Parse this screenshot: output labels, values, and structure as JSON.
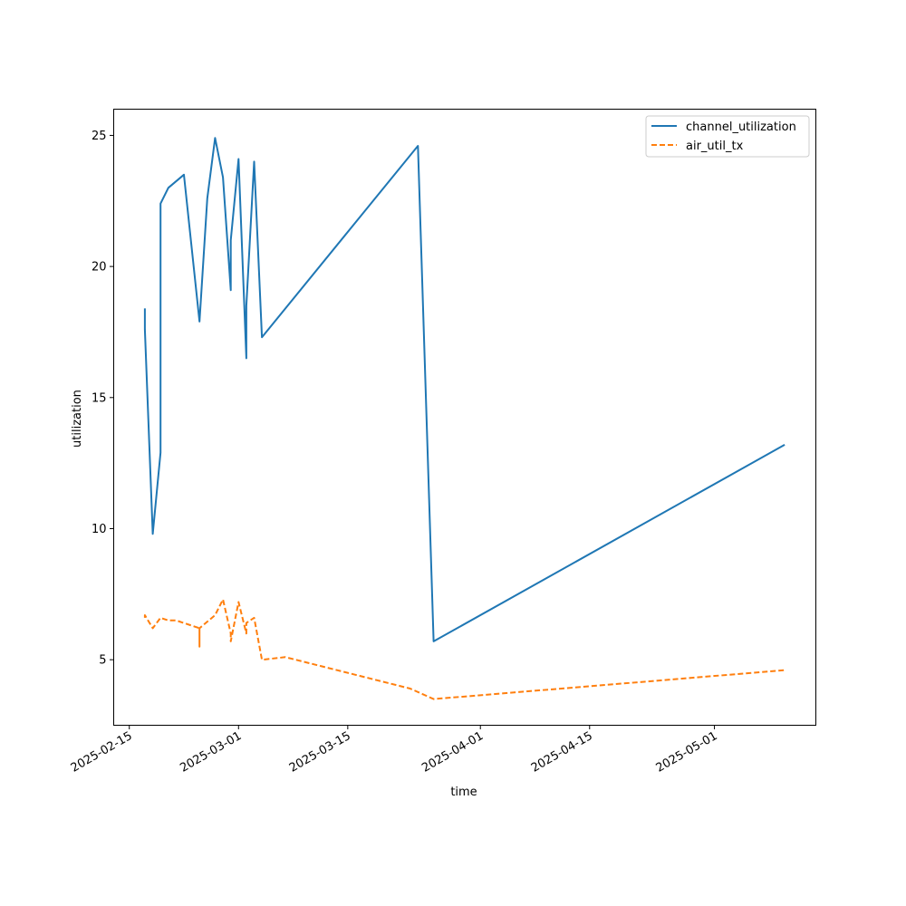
{
  "chart_data": {
    "type": "line",
    "title": "",
    "xlabel": "time",
    "ylabel": "utilization",
    "x_tick_labels": [
      "2025-02-15",
      "2025-03-01",
      "2025-03-15",
      "2025-04-01",
      "2025-04-15",
      "2025-05-01"
    ],
    "y_tick_labels": [
      "5",
      "10",
      "15",
      "20",
      "25"
    ],
    "x_range": [
      "2025-02-13",
      "2025-05-14"
    ],
    "y_range": [
      2.5,
      26.0
    ],
    "legend_position": "top-right",
    "grid": false,
    "series": [
      {
        "name": "channel_utilization",
        "color": "#1f77b4",
        "style": "solid",
        "points": [
          [
            "2025-02-17",
            18.4
          ],
          [
            "2025-02-17",
            17.6
          ],
          [
            "2025-02-18",
            9.8
          ],
          [
            "2025-02-19",
            12.9
          ],
          [
            "2025-02-19",
            16.5
          ],
          [
            "2025-02-19",
            22.4
          ],
          [
            "2025-02-20",
            23.0
          ],
          [
            "2025-02-22",
            23.5
          ],
          [
            "2025-02-24",
            17.9
          ],
          [
            "2025-02-25",
            22.6
          ],
          [
            "2025-02-26",
            24.9
          ],
          [
            "2025-02-27",
            23.4
          ],
          [
            "2025-02-28",
            19.1
          ],
          [
            "2025-02-28",
            21.0
          ],
          [
            "2025-03-01",
            24.1
          ],
          [
            "2025-03-02",
            16.5
          ],
          [
            "2025-03-02",
            18.5
          ],
          [
            "2025-03-03",
            24.0
          ],
          [
            "2025-03-04",
            17.3
          ],
          [
            "2025-03-24",
            24.6
          ],
          [
            "2025-03-26",
            5.7
          ],
          [
            "2025-05-10",
            13.2
          ]
        ]
      },
      {
        "name": "air_util_tx",
        "color": "#ff7f0e",
        "style": "dashed",
        "points": [
          [
            "2025-02-17",
            6.6
          ],
          [
            "2025-02-17",
            6.7
          ],
          [
            "2025-02-18",
            6.2
          ],
          [
            "2025-02-19",
            6.6
          ],
          [
            "2025-02-20",
            6.5
          ],
          [
            "2025-02-21",
            6.5
          ],
          [
            "2025-02-24",
            6.2
          ],
          [
            "2025-02-24",
            5.5
          ],
          [
            "2025-02-24",
            6.2
          ],
          [
            "2025-02-26",
            6.7
          ],
          [
            "2025-02-27",
            7.3
          ],
          [
            "2025-02-28",
            6.0
          ],
          [
            "2025-02-28",
            5.7
          ],
          [
            "2025-03-01",
            7.2
          ],
          [
            "2025-03-02",
            6.0
          ],
          [
            "2025-03-02",
            6.4
          ],
          [
            "2025-03-03",
            6.6
          ],
          [
            "2025-03-04",
            5.0
          ],
          [
            "2025-03-07",
            5.1
          ],
          [
            "2025-03-23",
            3.9
          ],
          [
            "2025-03-26",
            3.5
          ],
          [
            "2025-05-10",
            4.6
          ]
        ]
      }
    ]
  }
}
